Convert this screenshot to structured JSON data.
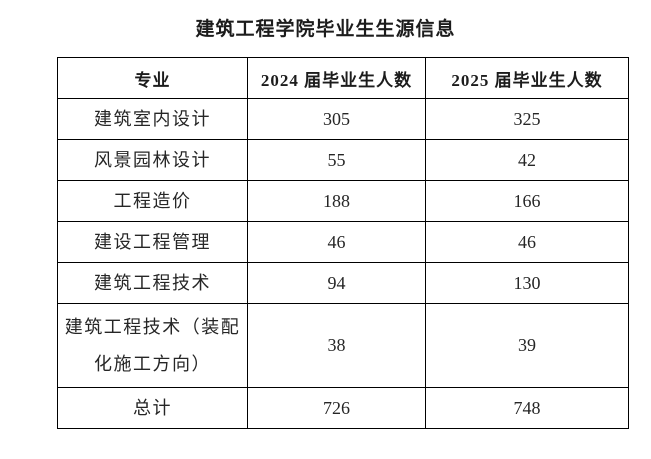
{
  "title": "建筑工程学院毕业生生源信息",
  "colors": {
    "background": "#ffffff",
    "border": "#000000",
    "text": "#262626"
  },
  "table": {
    "headers": [
      "专业",
      "2024 届毕业生人数",
      "2025 届毕业生人数"
    ],
    "rows": [
      {
        "major": "建筑室内设计",
        "c2024": "305",
        "c2025": "325"
      },
      {
        "major": "风景园林设计",
        "c2024": "55",
        "c2025": "42"
      },
      {
        "major": "工程造价",
        "c2024": "188",
        "c2025": "166"
      },
      {
        "major": "建设工程管理",
        "c2024": "46",
        "c2025": "46"
      },
      {
        "major": "建筑工程技术",
        "c2024": "94",
        "c2025": "130"
      },
      {
        "major": "建筑工程技术（装配化施工方向）",
        "c2024": "38",
        "c2025": "39"
      },
      {
        "major": "总计",
        "c2024": "726",
        "c2025": "748"
      }
    ]
  }
}
